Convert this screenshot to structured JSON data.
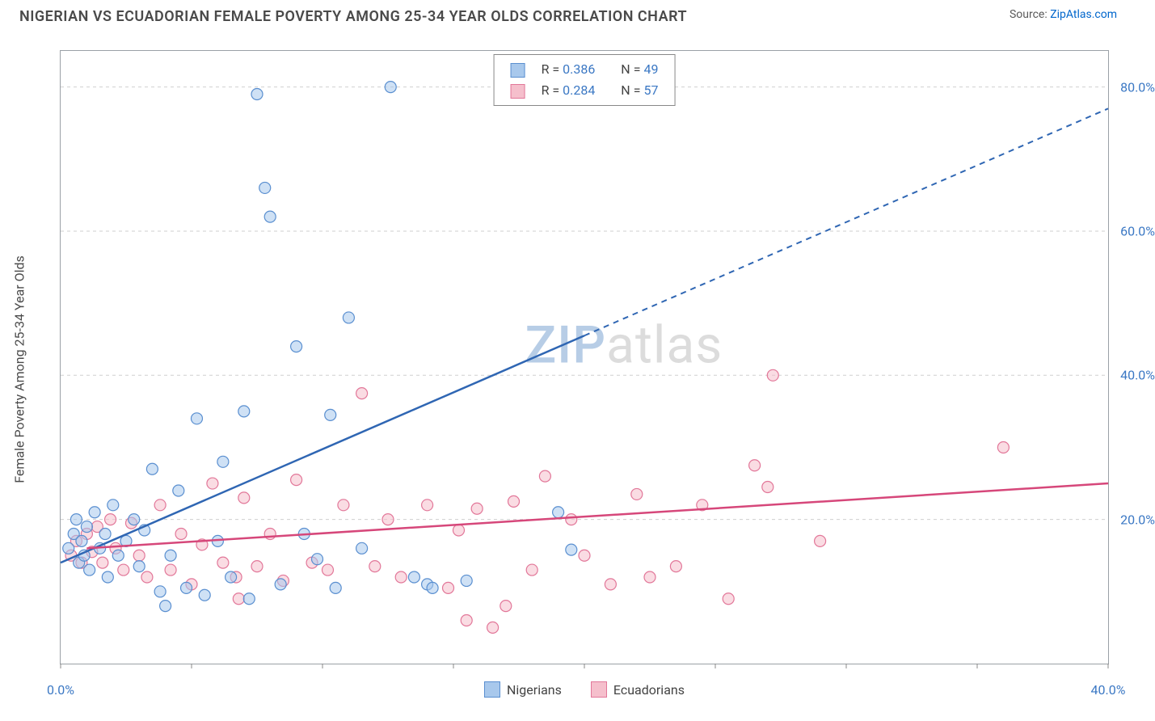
{
  "header": {
    "title": "NIGERIAN VS ECUADORIAN FEMALE POVERTY AMONG 25-34 YEAR OLDS CORRELATION CHART",
    "source_prefix": "Source: ",
    "source_link": "ZipAtlas.com"
  },
  "chart": {
    "type": "scatter",
    "ylabel": "Female Poverty Among 25-34 Year Olds",
    "background_color": "#ffffff",
    "grid_color": "#cfcfcf",
    "axis_color": "#9aa0a6",
    "xlim": [
      0,
      40
    ],
    "ylim": [
      0,
      85
    ],
    "x_ticks": [
      0,
      5,
      10,
      15,
      20,
      25,
      30,
      35,
      40
    ],
    "x_tick_labels": {
      "0": "0.0%",
      "40": "40.0%"
    },
    "y_gridlines": [
      20,
      40,
      60,
      80
    ],
    "y_tick_labels": {
      "20": "20.0%",
      "40": "40.0%",
      "60": "60.0%",
      "80": "80.0%"
    },
    "marker_radius": 7,
    "series": {
      "nigerians": {
        "label": "Nigerians",
        "color_fill": "#a8c8ec",
        "color_stroke": "#5a8fd0",
        "R": "0.386",
        "N": "49",
        "trend": {
          "x1": 0,
          "y1": 14,
          "x2": 40,
          "y2": 77,
          "solid_until_x": 20,
          "color": "#2f66b3"
        },
        "points": [
          [
            0.3,
            16
          ],
          [
            0.5,
            18
          ],
          [
            0.6,
            20
          ],
          [
            0.7,
            14
          ],
          [
            0.8,
            17
          ],
          [
            0.9,
            15
          ],
          [
            1.0,
            19
          ],
          [
            1.1,
            13
          ],
          [
            1.3,
            21
          ],
          [
            1.5,
            16
          ],
          [
            1.7,
            18
          ],
          [
            1.8,
            12
          ],
          [
            2.0,
            22
          ],
          [
            2.2,
            15
          ],
          [
            2.5,
            17
          ],
          [
            2.8,
            20
          ],
          [
            3.0,
            13.5
          ],
          [
            3.2,
            18.5
          ],
          [
            3.5,
            27
          ],
          [
            3.8,
            10
          ],
          [
            4.0,
            8
          ],
          [
            4.2,
            15
          ],
          [
            4.5,
            24
          ],
          [
            4.8,
            10.5
          ],
          [
            5.2,
            34
          ],
          [
            5.5,
            9.5
          ],
          [
            6.0,
            17
          ],
          [
            6.2,
            28
          ],
          [
            6.5,
            12
          ],
          [
            7.0,
            35
          ],
          [
            7.2,
            9
          ],
          [
            7.5,
            79
          ],
          [
            7.8,
            66
          ],
          [
            8.0,
            62
          ],
          [
            8.4,
            11
          ],
          [
            9.0,
            44
          ],
          [
            9.3,
            18
          ],
          [
            9.8,
            14.5
          ],
          [
            10.3,
            34.5
          ],
          [
            10.5,
            10.5
          ],
          [
            11.0,
            48
          ],
          [
            11.5,
            16
          ],
          [
            12.6,
            80
          ],
          [
            13.5,
            12
          ],
          [
            14.0,
            11
          ],
          [
            14.2,
            10.5
          ],
          [
            15.5,
            11.5
          ],
          [
            19.0,
            21
          ],
          [
            19.5,
            15.8
          ]
        ]
      },
      "ecuadorians": {
        "label": "Ecuadorians",
        "color_fill": "#f5bfcc",
        "color_stroke": "#e27799",
        "R": "0.284",
        "N": "57",
        "trend": {
          "x1": 1,
          "y1": 16,
          "x2": 40,
          "y2": 25,
          "solid_until_x": 40,
          "color": "#d6477a"
        },
        "points": [
          [
            0.4,
            15
          ],
          [
            0.6,
            17
          ],
          [
            0.8,
            14
          ],
          [
            1.0,
            18
          ],
          [
            1.2,
            15.5
          ],
          [
            1.4,
            19
          ],
          [
            1.6,
            14
          ],
          [
            1.9,
            20
          ],
          [
            2.1,
            16
          ],
          [
            2.4,
            13
          ],
          [
            2.7,
            19.5
          ],
          [
            3.0,
            15
          ],
          [
            3.3,
            12
          ],
          [
            3.8,
            22
          ],
          [
            4.2,
            13
          ],
          [
            4.6,
            18
          ],
          [
            5.0,
            11
          ],
          [
            5.4,
            16.5
          ],
          [
            5.8,
            25
          ],
          [
            6.2,
            14
          ],
          [
            6.7,
            12
          ],
          [
            7.0,
            23
          ],
          [
            7.5,
            13.5
          ],
          [
            8.0,
            18
          ],
          [
            8.5,
            11.5
          ],
          [
            9.0,
            25.5
          ],
          [
            9.6,
            14
          ],
          [
            10.2,
            13
          ],
          [
            10.8,
            22
          ],
          [
            11.5,
            37.5
          ],
          [
            12.0,
            13.5
          ],
          [
            12.5,
            20
          ],
          [
            13.0,
            12
          ],
          [
            14.0,
            22
          ],
          [
            14.8,
            10.5
          ],
          [
            15.2,
            18.5
          ],
          [
            15.9,
            21.5
          ],
          [
            16.5,
            5
          ],
          [
            17.0,
            8
          ],
          [
            17.3,
            22.5
          ],
          [
            18.0,
            13
          ],
          [
            20.0,
            15
          ],
          [
            21.0,
            11
          ],
          [
            22.0,
            23.5
          ],
          [
            22.5,
            12
          ],
          [
            23.5,
            13.5
          ],
          [
            24.5,
            22
          ],
          [
            25.5,
            9
          ],
          [
            26.5,
            27.5
          ],
          [
            27.0,
            24.5
          ],
          [
            27.2,
            40
          ],
          [
            29.0,
            17
          ],
          [
            36.0,
            30
          ],
          [
            18.5,
            26
          ],
          [
            19.5,
            20
          ],
          [
            6.8,
            9
          ],
          [
            15.5,
            6
          ]
        ]
      }
    },
    "watermark": {
      "zip": "ZIP",
      "atlas": "atlas"
    },
    "legend_top": {
      "R_label": "R = ",
      "N_label": "N = "
    }
  }
}
